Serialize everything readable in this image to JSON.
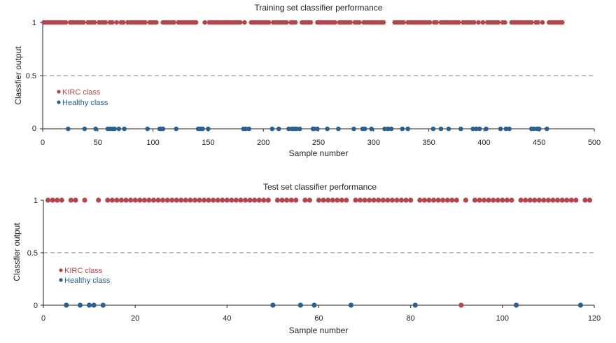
{
  "colors": {
    "kirc": "#b5454a",
    "healthy": "#2a5f8f"
  },
  "chart_data": [
    {
      "type": "scatter",
      "title": "Training set classifier performance",
      "xlabel": "Sample number",
      "ylabel": "Classfier output",
      "xlim": [
        0,
        500
      ],
      "ylim": [
        0,
        1
      ],
      "xticks": [
        "0",
        "50",
        "100",
        "150",
        "200",
        "250",
        "300",
        "350",
        "400",
        "450",
        "500"
      ],
      "yticks": [
        "0",
        "0.5",
        "1"
      ],
      "threshold": 0.5,
      "legend": {
        "placement": "left-middle",
        "entries": [
          "KIRC class",
          "Healthy class"
        ]
      },
      "series": [
        {
          "name": "KIRC class",
          "x": [
            1,
            3,
            5,
            7,
            9,
            11,
            13,
            15,
            17,
            19,
            21,
            25,
            27,
            29,
            31,
            33,
            35,
            37,
            41,
            43,
            45,
            47,
            51,
            53,
            55,
            57,
            61,
            63,
            67,
            71,
            73,
            77,
            79,
            81,
            83,
            85,
            87,
            89,
            91,
            93,
            97,
            99,
            101,
            103,
            109,
            111,
            113,
            115,
            117,
            119,
            123,
            125,
            127,
            129,
            131,
            133,
            135,
            137,
            139,
            147,
            151,
            153,
            155,
            157,
            159,
            161,
            163,
            165,
            167,
            169,
            171,
            173,
            175,
            177,
            179,
            183,
            189,
            191,
            193,
            195,
            197,
            199,
            201,
            203,
            205,
            209,
            211,
            213,
            215,
            217,
            219,
            221,
            225,
            227,
            229,
            235,
            237,
            239,
            241,
            243,
            249,
            251,
            253,
            255,
            257,
            259,
            261,
            263,
            265,
            269,
            271,
            273,
            275,
            277,
            279,
            283,
            285,
            287,
            291,
            293,
            295,
            297,
            299,
            301,
            303,
            305,
            307,
            309,
            319,
            321,
            323,
            325,
            327,
            331,
            333,
            335,
            337,
            339,
            341,
            343,
            345,
            347,
            349,
            351,
            355,
            357,
            361,
            363,
            365,
            367,
            369,
            371,
            373,
            375,
            377,
            381,
            383,
            385,
            387,
            389,
            391,
            395,
            399,
            403,
            405,
            407,
            409,
            411,
            413,
            417,
            419,
            425,
            427,
            429,
            431,
            433,
            435,
            437,
            439,
            441,
            443,
            447,
            449,
            453,
            459,
            461,
            463,
            465,
            467,
            469,
            471
          ],
          "y": [
            1,
            1,
            1,
            1,
            1,
            1,
            1,
            1,
            1,
            1,
            1,
            1,
            1,
            1,
            1,
            1,
            1,
            1,
            1,
            1,
            1,
            1,
            1,
            1,
            1,
            1,
            1,
            1,
            1,
            1,
            1,
            1,
            1,
            1,
            1,
            1,
            1,
            1,
            1,
            1,
            1,
            1,
            1,
            1,
            1,
            1,
            1,
            1,
            1,
            1,
            1,
            1,
            1,
            1,
            1,
            1,
            1,
            1,
            1,
            1,
            1,
            1,
            1,
            1,
            1,
            1,
            1,
            1,
            1,
            1,
            1,
            1,
            1,
            1,
            1,
            1,
            1,
            1,
            1,
            1,
            1,
            1,
            1,
            1,
            1,
            1,
            1,
            1,
            1,
            1,
            1,
            1,
            1,
            1,
            1,
            1,
            1,
            1,
            1,
            1,
            1,
            1,
            1,
            1,
            1,
            1,
            1,
            1,
            1,
            1,
            1,
            1,
            1,
            1,
            1,
            1,
            1,
            1,
            1,
            1,
            1,
            1,
            1,
            1,
            1,
            1,
            1,
            1,
            1,
            1,
            1,
            1,
            1,
            1,
            1,
            1,
            1,
            1,
            1,
            1,
            1,
            1,
            1,
            1,
            1,
            1,
            1,
            1,
            1,
            1,
            1,
            1,
            1,
            1,
            1,
            1,
            1,
            1,
            1,
            1,
            1,
            1,
            1,
            1,
            1,
            1,
            1,
            1,
            1,
            1,
            1,
            1,
            1,
            1,
            1,
            1,
            1,
            1,
            1,
            1,
            1,
            1,
            1,
            1,
            1,
            1,
            1,
            1,
            1,
            1,
            1
          ],
          "color": "#b5454a"
        },
        {
          "name": "Healthy class",
          "x": [
            23,
            38,
            48,
            59,
            61,
            63,
            65,
            69,
            74,
            95,
            106,
            107,
            109,
            121,
            141,
            143,
            145,
            150,
            182,
            184,
            187,
            208,
            214,
            223,
            226,
            228,
            230,
            233,
            245,
            246,
            249,
            258,
            268,
            282,
            290,
            292,
            298,
            310,
            313,
            316,
            326,
            331,
            354,
            361,
            368,
            379,
            390,
            393,
            396,
            402,
            415,
            420,
            423,
            443,
            445,
            448,
            450,
            457
          ],
          "y": [
            0,
            0,
            0,
            0,
            0,
            0,
            0,
            0,
            0,
            0,
            0,
            0,
            0,
            0,
            0,
            0,
            0,
            0,
            0,
            0,
            0,
            0,
            0,
            0,
            0,
            0,
            0,
            0,
            0,
            0,
            0,
            0,
            0,
            0,
            0,
            0,
            0,
            0,
            0,
            0,
            0,
            0,
            0,
            0,
            0,
            0,
            0,
            0,
            0,
            0,
            0,
            0,
            0,
            0,
            0,
            0,
            0,
            0
          ],
          "color": "#2a5f8f"
        }
      ]
    },
    {
      "type": "scatter",
      "title": "Test set classifier performance",
      "xlabel": "Sample number",
      "ylabel": "Classfier output",
      "xlim": [
        0,
        120
      ],
      "ylim": [
        0,
        1
      ],
      "xticks": [
        "0",
        "20",
        "40",
        "60",
        "80",
        "100",
        "120"
      ],
      "yticks": [
        "0",
        "0.5",
        "1"
      ],
      "threshold": 0.5,
      "legend": {
        "placement": "left-middle",
        "entries": [
          "KIRC class",
          "Healthy class"
        ]
      },
      "series": [
        {
          "name": "KIRC class",
          "x": [
            1,
            2,
            3,
            4,
            6,
            7,
            9,
            12,
            14,
            15,
            16,
            17,
            18,
            19,
            20,
            21,
            22,
            23,
            24,
            25,
            26,
            27,
            28,
            29,
            30,
            31,
            32,
            33,
            34,
            35,
            36,
            37,
            38,
            39,
            40,
            41,
            42,
            43,
            44,
            45,
            46,
            47,
            48,
            49,
            51,
            52,
            53,
            54,
            55,
            57,
            58,
            60,
            61,
            62,
            63,
            64,
            65,
            66,
            68,
            69,
            70,
            71,
            72,
            73,
            74,
            75,
            76,
            77,
            78,
            79,
            80,
            82,
            83,
            84,
            85,
            86,
            87,
            88,
            89,
            90,
            91,
            92,
            94,
            95,
            96,
            97,
            98,
            99,
            100,
            101,
            102,
            104,
            105,
            106,
            107,
            108,
            109,
            110,
            111,
            112,
            113,
            114,
            115,
            116,
            118,
            119
          ],
          "y": [
            1,
            1,
            1,
            1,
            1,
            1,
            1,
            1,
            1,
            1,
            1,
            1,
            1,
            1,
            1,
            1,
            1,
            1,
            1,
            1,
            1,
            1,
            1,
            1,
            1,
            1,
            1,
            1,
            1,
            1,
            1,
            1,
            1,
            1,
            1,
            1,
            1,
            1,
            1,
            1,
            1,
            1,
            1,
            1,
            1,
            1,
            1,
            1,
            1,
            1,
            1,
            1,
            1,
            1,
            1,
            1,
            1,
            1,
            1,
            1,
            1,
            1,
            1,
            1,
            1,
            1,
            1,
            1,
            1,
            1,
            1,
            1,
            1,
            1,
            1,
            1,
            1,
            1,
            1,
            1,
            0,
            1,
            1,
            1,
            1,
            1,
            1,
            1,
            1,
            1,
            1,
            1,
            1,
            1,
            1,
            1,
            1,
            1,
            1,
            1,
            1,
            1,
            1,
            1,
            1,
            1
          ],
          "color": "#b5454a"
        },
        {
          "name": "Healthy class",
          "x": [
            5,
            8,
            10,
            11,
            13,
            50,
            56,
            59,
            67,
            81,
            103,
            117
          ],
          "y": [
            0,
            0,
            0,
            0,
            0,
            0,
            0,
            0,
            0,
            0,
            0,
            0
          ],
          "color": "#2a5f8f"
        }
      ]
    }
  ]
}
